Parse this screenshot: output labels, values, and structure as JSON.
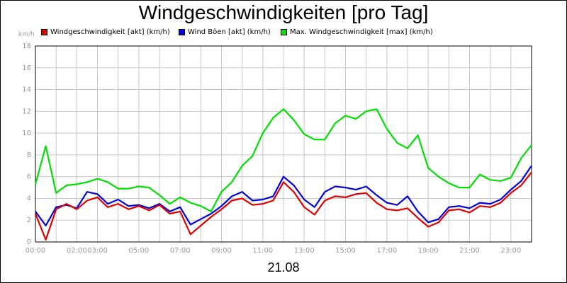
{
  "title": "Windgeschwindigkeiten [pro Tag]",
  "y_unit": "km/h",
  "date_label": "21.08",
  "legend": [
    {
      "label": "Windgeschwindigkeit [akt] (km/h)",
      "color": "#e00000"
    },
    {
      "label": "Wind Böen [akt] (km/h)",
      "color": "#0000dd"
    },
    {
      "label": "Max. Windgeschwindigkeit [max] (km/h)",
      "color": "#00e000"
    }
  ],
  "chart_data": {
    "type": "line",
    "title": "Windgeschwindigkeiten [pro Tag]",
    "xlabel": "21.08",
    "ylabel": "km/h",
    "x_unit": "hours",
    "xlim": [
      0,
      24
    ],
    "ylim": [
      0,
      18
    ],
    "y_ticks": [
      0,
      2,
      4,
      6,
      8,
      10,
      12,
      14,
      16,
      18
    ],
    "x_ticks": [
      {
        "value": 0,
        "label": "00:00"
      },
      {
        "value": 2,
        "label": "02:00"
      },
      {
        "value": 3,
        "label": "03:00"
      },
      {
        "value": 5,
        "label": "05:00"
      },
      {
        "value": 7,
        "label": "07:00"
      },
      {
        "value": 9,
        "label": "09:00"
      },
      {
        "value": 11,
        "label": "11:00"
      },
      {
        "value": 13,
        "label": "13:00"
      },
      {
        "value": 15,
        "label": "15:00"
      },
      {
        "value": 17,
        "label": "17:00"
      },
      {
        "value": 19,
        "label": "19:00"
      },
      {
        "value": 21,
        "label": "21:00"
      },
      {
        "value": 23,
        "label": "23:00"
      }
    ],
    "grid": true,
    "legend_position": "top",
    "x": [
      0,
      0.5,
      1,
      1.5,
      2,
      2.5,
      3,
      3.5,
      4,
      4.5,
      5,
      5.5,
      6,
      6.5,
      7,
      7.5,
      8,
      8.5,
      9,
      9.5,
      10,
      10.5,
      11,
      11.5,
      12,
      12.5,
      13,
      13.5,
      14,
      14.5,
      15,
      15.5,
      16,
      16.5,
      17,
      17.5,
      18,
      18.5,
      19,
      19.5,
      20,
      20.5,
      21,
      21.5,
      22,
      22.5,
      23,
      23.5,
      24
    ],
    "series": [
      {
        "name": "Windgeschwindigkeit [akt] (km/h)",
        "color": "#e00000",
        "values": [
          2.6,
          0.2,
          3.0,
          3.5,
          3.0,
          3.8,
          4.1,
          3.2,
          3.5,
          3.0,
          3.3,
          2.9,
          3.4,
          2.6,
          2.8,
          0.7,
          1.5,
          2.3,
          3.0,
          3.8,
          4.0,
          3.4,
          3.5,
          3.8,
          5.5,
          4.6,
          3.2,
          2.5,
          3.8,
          4.2,
          4.1,
          4.4,
          4.5,
          3.6,
          3.0,
          2.9,
          3.1,
          2.2,
          1.4,
          1.8,
          2.9,
          3.0,
          2.7,
          3.3,
          3.2,
          3.6,
          4.5,
          5.2,
          6.4
        ]
      },
      {
        "name": "Wind Böen [akt] (km/h)",
        "color": "#0000dd",
        "values": [
          2.8,
          1.5,
          3.2,
          3.4,
          3.1,
          4.6,
          4.4,
          3.5,
          3.9,
          3.3,
          3.4,
          3.1,
          3.5,
          2.8,
          3.2,
          1.6,
          2.1,
          2.6,
          3.3,
          4.2,
          4.6,
          3.8,
          3.9,
          4.2,
          6.0,
          5.2,
          3.9,
          3.2,
          4.6,
          5.1,
          5.0,
          4.8,
          5.1,
          4.3,
          3.6,
          3.4,
          4.2,
          2.8,
          1.8,
          2.1,
          3.2,
          3.3,
          3.1,
          3.6,
          3.5,
          3.9,
          4.8,
          5.6,
          7.0
        ]
      },
      {
        "name": "Max. Windgeschwindigkeit [max] (km/h)",
        "color": "#00e000",
        "values": [
          5.3,
          8.8,
          4.5,
          5.2,
          5.3,
          5.5,
          5.8,
          5.5,
          4.9,
          4.9,
          5.1,
          5.0,
          4.3,
          3.5,
          4.1,
          3.6,
          3.3,
          2.8,
          4.6,
          5.5,
          7.0,
          7.9,
          10.0,
          11.4,
          12.2,
          11.2,
          9.9,
          9.4,
          9.4,
          10.9,
          11.6,
          11.3,
          12.0,
          12.2,
          10.4,
          9.1,
          8.6,
          9.8,
          6.8,
          6.0,
          5.4,
          5.0,
          5.0,
          6.2,
          5.7,
          5.6,
          5.9,
          7.7,
          8.9
        ]
      }
    ]
  }
}
